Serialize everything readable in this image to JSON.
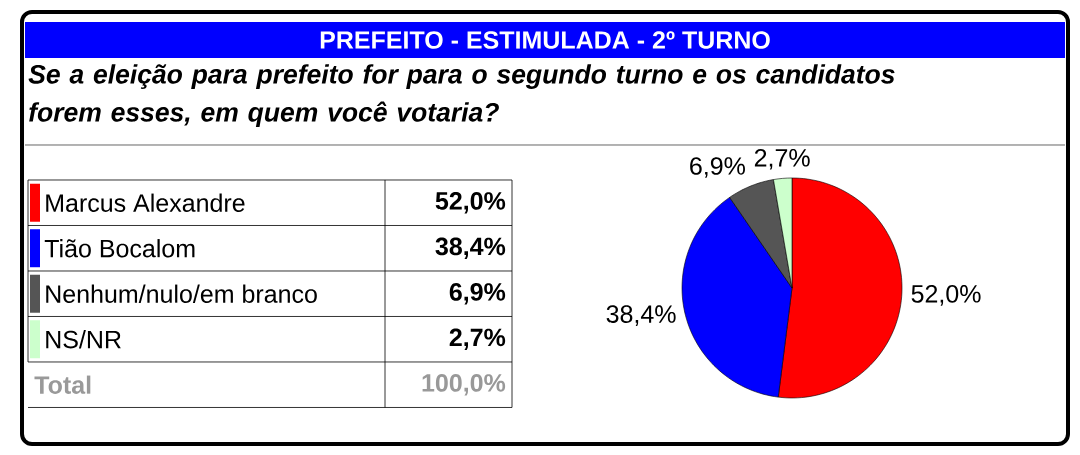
{
  "chart_data": {
    "type": "pie",
    "title": "PREFEITO - ESTIMULADA - 2º TURNO",
    "subtitle": "Se a eleição para prefeito for para o segundo turno e os candidatos forem esses, em quem você votaria?",
    "categories": [
      "Marcus Alexandre",
      "Tião Bocalom",
      "Nenhum/nulo/em branco",
      "NS/NR"
    ],
    "values": [
      52.0,
      38.4,
      6.9,
      2.7
    ],
    "value_labels": [
      "52,0%",
      "38,4%",
      "6,9%",
      "2,7%"
    ],
    "colors": [
      "#ff0000",
      "#0000ff",
      "#555555",
      "#ccffcc"
    ],
    "legend": "left",
    "annotations": [
      "Total",
      "100,0%"
    ]
  }
}
